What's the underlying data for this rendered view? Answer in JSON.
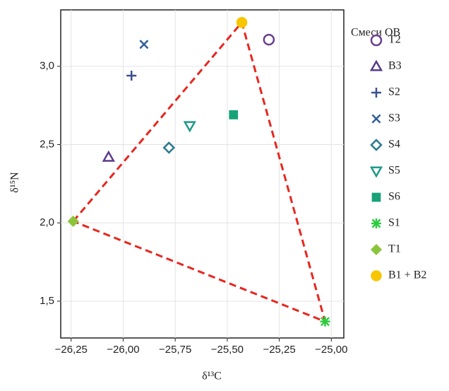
{
  "chart_data": {
    "type": "scatter",
    "x_label": "δ¹³C",
    "y_label": "δ¹⁵N",
    "legend_title": "Смеси ОВ",
    "xlim": [
      -26.3,
      -24.94
    ],
    "ylim": [
      1.265,
      3.36
    ],
    "xticks": [
      {
        "value": -26.25,
        "label": "−26,25"
      },
      {
        "value": -26.0,
        "label": "−26,00"
      },
      {
        "value": -25.75,
        "label": "−25,75"
      },
      {
        "value": -25.5,
        "label": "−25,50"
      },
      {
        "value": -25.25,
        "label": "−25,25"
      },
      {
        "value": -25.0,
        "label": "−25,00"
      }
    ],
    "yticks": [
      {
        "value": 1.5,
        "label": "1,5"
      },
      {
        "value": 2.0,
        "label": "2,0"
      },
      {
        "value": 2.5,
        "label": "2,5"
      },
      {
        "value": 3.0,
        "label": "3,0"
      }
    ],
    "grid": true,
    "series": [
      {
        "name": "T2",
        "color": "#6a3d8f",
        "marker": "circle",
        "x": [
          -25.3
        ],
        "values": [
          3.17
        ]
      },
      {
        "name": "B3",
        "color": "#5a3a8c",
        "marker": "triangle",
        "x": [
          -26.07
        ],
        "values": [
          2.42
        ]
      },
      {
        "name": "S2",
        "color": "#3d4f8f",
        "marker": "plus",
        "x": [
          -25.96
        ],
        "values": [
          2.94
        ]
      },
      {
        "name": "S3",
        "color": "#2f5e98",
        "marker": "x",
        "x": [
          -25.9
        ],
        "values": [
          3.14
        ]
      },
      {
        "name": "S4",
        "color": "#2a7890",
        "marker": "diamond",
        "x": [
          -25.78
        ],
        "values": [
          2.48
        ]
      },
      {
        "name": "S5",
        "color": "#1f9a88",
        "marker": "triangle-down",
        "x": [
          -25.68
        ],
        "values": [
          2.62
        ]
      },
      {
        "name": "S6",
        "color": "#17a278",
        "marker": "square",
        "x": [
          -25.47
        ],
        "values": [
          2.69
        ]
      },
      {
        "name": "S1",
        "color": "#2ecc40",
        "marker": "star",
        "x": [
          -25.03
        ],
        "values": [
          1.37
        ]
      },
      {
        "name": "T1",
        "color": "#8cc43c",
        "marker": "diamond-filled",
        "x": [
          -26.24
        ],
        "values": [
          2.01
        ]
      },
      {
        "name": "B1 + B2",
        "color": "#f7c600",
        "marker": "circle-filled",
        "x": [
          -25.43
        ],
        "values": [
          3.28
        ]
      }
    ]
  }
}
